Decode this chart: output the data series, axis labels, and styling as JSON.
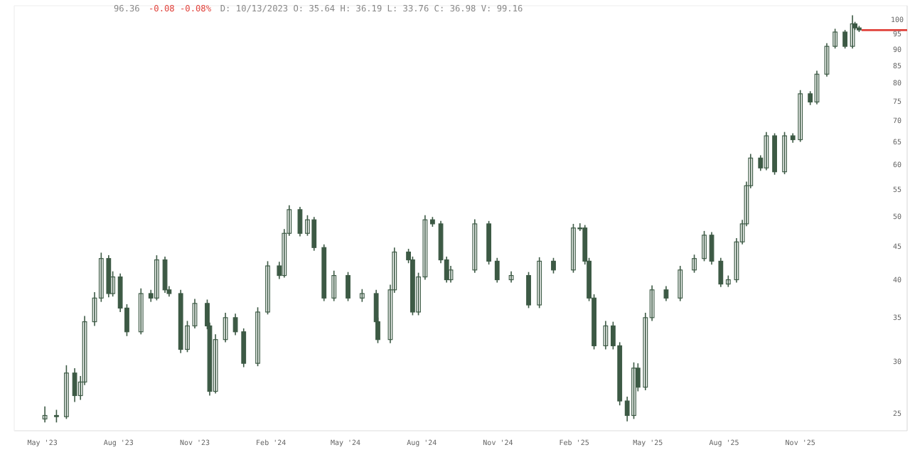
{
  "chart_data": {
    "type": "candlestick",
    "annotations": [
      "96.36",
      "-0.08 -0.08%",
      "D: 10/13/2023 O: 35.64 H: 36.19 L: 33.76 C: 36.98 V: 99.16"
    ],
    "x": [
      "2023-05-04",
      "2023-05-18",
      "2023-05-30",
      "2023-06-09",
      "2023-06-16",
      "2023-06-21",
      "2023-07-03",
      "2023-07-11",
      "2023-07-20",
      "2023-07-25",
      "2023-08-03",
      "2023-08-11",
      "2023-08-28",
      "2023-09-09",
      "2023-09-16",
      "2023-09-26",
      "2023-10-01",
      "2023-10-15",
      "2023-10-23",
      "2023-11-01",
      "2023-11-16",
      "2023-11-19",
      "2023-11-26",
      "2023-12-08",
      "2023-12-20",
      "2023-12-30",
      "2024-01-16",
      "2024-01-28",
      "2024-02-11",
      "2024-02-17",
      "2024-02-23",
      "2024-03-07",
      "2024-03-16",
      "2024-03-24",
      "2024-04-05",
      "2024-04-17",
      "2024-05-04",
      "2024-05-21",
      "2024-06-07",
      "2024-06-09",
      "2024-06-24",
      "2024-06-29",
      "2024-07-16",
      "2024-07-21",
      "2024-07-28",
      "2024-08-05",
      "2024-08-14",
      "2024-08-24",
      "2024-08-31",
      "2024-09-05",
      "2024-10-04",
      "2024-10-21",
      "2024-10-31",
      "2024-11-17",
      "2024-12-08",
      "2024-12-21",
      "2025-01-07",
      "2025-01-31",
      "2025-02-08",
      "2025-02-14",
      "2025-02-19",
      "2025-02-25",
      "2025-03-11",
      "2025-03-20",
      "2025-03-28",
      "2025-04-06",
      "2025-04-14",
      "2025-04-19",
      "2025-04-28",
      "2025-05-06",
      "2025-05-23",
      "2025-06-09",
      "2025-06-26",
      "2025-07-08",
      "2025-07-17",
      "2025-07-28",
      "2025-08-06",
      "2025-08-16",
      "2025-08-23",
      "2025-08-28",
      "2025-09-02",
      "2025-09-14",
      "2025-09-21",
      "2025-10-01",
      "2025-10-13",
      "2025-10-23",
      "2025-11-01",
      "2025-11-13",
      "2025-11-21",
      "2025-12-03",
      "2025-12-13",
      "2025-12-25",
      "2026-01-03",
      "2026-01-06",
      "2026-01-11"
    ],
    "ohlc": [
      [
        24.5,
        25.6,
        24.2,
        24.8
      ],
      [
        24.8,
        25.3,
        24.2,
        24.7
      ],
      [
        24.7,
        29.6,
        24.5,
        28.8
      ],
      [
        28.8,
        29.3,
        26.0,
        26.6
      ],
      [
        26.6,
        28.5,
        26.2,
        27.9
      ],
      [
        27.9,
        35.2,
        27.6,
        34.5
      ],
      [
        34.5,
        38.3,
        34.0,
        37.5
      ],
      [
        37.5,
        44.0,
        37.0,
        43.1
      ],
      [
        43.1,
        43.6,
        37.6,
        38.1
      ],
      [
        38.1,
        41.2,
        37.7,
        40.4
      ],
      [
        40.4,
        40.9,
        35.7,
        36.2
      ],
      [
        36.2,
        36.7,
        32.8,
        33.3
      ],
      [
        33.3,
        38.8,
        33.0,
        38.1
      ],
      [
        38.1,
        38.6,
        37.0,
        37.5
      ],
      [
        37.5,
        43.6,
        37.2,
        42.9
      ],
      [
        42.9,
        43.4,
        38.2,
        38.6
      ],
      [
        38.6,
        39.1,
        37.7,
        38.1
      ],
      [
        38.1,
        38.6,
        30.9,
        31.3
      ],
      [
        31.3,
        34.6,
        31.0,
        34.0
      ],
      [
        34.0,
        37.4,
        33.7,
        36.8
      ],
      [
        36.8,
        37.3,
        33.6,
        34.0
      ],
      [
        34.0,
        34.4,
        26.6,
        27.0
      ],
      [
        27.0,
        33.0,
        26.8,
        32.4
      ],
      [
        32.4,
        35.6,
        32.1,
        35.0
      ],
      [
        35.0,
        35.5,
        32.9,
        33.3
      ],
      [
        33.3,
        33.7,
        29.4,
        29.8
      ],
      [
        29.8,
        36.3,
        29.5,
        35.7
      ],
      [
        35.7,
        42.7,
        35.4,
        42.0
      ],
      [
        42.0,
        42.6,
        40.1,
        40.6
      ],
      [
        40.6,
        47.8,
        40.3,
        47.1
      ],
      [
        47.1,
        52.0,
        46.7,
        51.2
      ],
      [
        51.2,
        51.7,
        46.6,
        47.1
      ],
      [
        47.1,
        50.2,
        46.7,
        49.4
      ],
      [
        49.4,
        49.9,
        44.3,
        44.8
      ],
      [
        44.8,
        45.3,
        37.1,
        37.5
      ],
      [
        37.5,
        41.3,
        37.1,
        40.6
      ],
      [
        40.6,
        41.1,
        37.1,
        37.5
      ],
      [
        37.5,
        38.7,
        37.0,
        38.1
      ],
      [
        38.1,
        38.6,
        34.1,
        34.5
      ],
      [
        34.5,
        35.0,
        32.0,
        32.4
      ],
      [
        32.4,
        39.3,
        32.0,
        38.6
      ],
      [
        38.6,
        44.8,
        38.2,
        44.1
      ],
      [
        44.1,
        44.6,
        42.4,
        42.9
      ],
      [
        42.9,
        43.4,
        35.3,
        35.7
      ],
      [
        35.7,
        41.0,
        35.3,
        40.4
      ],
      [
        40.4,
        50.2,
        40.0,
        49.4
      ],
      [
        49.4,
        49.9,
        48.2,
        48.7
      ],
      [
        48.7,
        49.2,
        42.4,
        42.9
      ],
      [
        42.9,
        43.4,
        39.6,
        40.0
      ],
      [
        40.0,
        42.0,
        39.6,
        41.4
      ],
      [
        41.4,
        49.5,
        41.0,
        48.7
      ],
      [
        48.7,
        49.2,
        42.2,
        42.7
      ],
      [
        42.7,
        43.2,
        39.6,
        40.0
      ],
      [
        40.0,
        41.2,
        39.6,
        40.6
      ],
      [
        40.6,
        41.1,
        36.2,
        36.6
      ],
      [
        36.6,
        43.3,
        36.2,
        42.7
      ],
      [
        42.7,
        43.2,
        40.9,
        41.4
      ],
      [
        41.4,
        48.7,
        41.0,
        48.0
      ],
      [
        48.0,
        48.8,
        47.5,
        48.0
      ],
      [
        48.0,
        48.5,
        42.2,
        42.7
      ],
      [
        42.7,
        43.2,
        37.1,
        37.5
      ],
      [
        37.5,
        38.0,
        31.3,
        31.7
      ],
      [
        31.7,
        34.6,
        31.3,
        34.0
      ],
      [
        34.0,
        34.5,
        31.3,
        31.7
      ],
      [
        31.7,
        32.1,
        25.7,
        26.1
      ],
      [
        26.1,
        26.5,
        24.3,
        24.8
      ],
      [
        24.8,
        29.9,
        24.5,
        29.3
      ],
      [
        29.3,
        29.8,
        27.0,
        27.4
      ],
      [
        27.4,
        35.6,
        27.1,
        35.0
      ],
      [
        35.0,
        39.2,
        34.6,
        38.6
      ],
      [
        38.6,
        39.1,
        37.1,
        37.5
      ],
      [
        37.5,
        42.0,
        37.1,
        41.4
      ],
      [
        41.4,
        43.7,
        41.0,
        43.1
      ],
      [
        43.1,
        47.5,
        42.7,
        46.8
      ],
      [
        46.8,
        47.3,
        42.2,
        42.7
      ],
      [
        42.7,
        43.2,
        39.0,
        39.4
      ],
      [
        39.4,
        40.6,
        39.0,
        40.0
      ],
      [
        40.0,
        46.3,
        39.6,
        45.7
      ],
      [
        45.7,
        49.4,
        45.3,
        48.7
      ],
      [
        48.7,
        56.5,
        48.3,
        55.7
      ],
      [
        55.7,
        62.3,
        55.2,
        61.4
      ],
      [
        61.4,
        62.0,
        58.7,
        59.3
      ],
      [
        59.3,
        67.3,
        58.8,
        66.4
      ],
      [
        66.4,
        67.0,
        57.9,
        58.5
      ],
      [
        58.5,
        67.3,
        58.0,
        66.4
      ],
      [
        66.4,
        67.0,
        64.8,
        65.5
      ],
      [
        65.5,
        78.0,
        65.0,
        77.0
      ],
      [
        77.0,
        77.7,
        74.0,
        74.8
      ],
      [
        74.8,
        83.5,
        74.2,
        82.5
      ],
      [
        82.5,
        92.0,
        81.8,
        91.0
      ],
      [
        91.0,
        96.8,
        90.3,
        95.7
      ],
      [
        95.7,
        96.4,
        90.3,
        91.0
      ],
      [
        91.0,
        101.5,
        90.3,
        98.5
      ],
      [
        98.5,
        99.2,
        96.4,
        97.1
      ],
      [
        97.1,
        97.8,
        95.7,
        96.4
      ]
    ],
    "color": "#3d5a45",
    "log": true,
    "ylim": [
      23.5,
      105
    ],
    "yticks": [
      25,
      30,
      35,
      40,
      45,
      50,
      55,
      60,
      65,
      70,
      75,
      80,
      85,
      90,
      95,
      100
    ],
    "xlim": [
      "2023-03-28",
      "2026-03-10"
    ],
    "xticks": [
      {
        "value": "2023-05-01",
        "label": "May '23"
      },
      {
        "value": "2023-08-01",
        "label": "Aug '23"
      },
      {
        "value": "2023-11-01",
        "label": "Nov '23"
      },
      {
        "value": "2024-02-01",
        "label": "Feb '24"
      },
      {
        "value": "2024-05-01",
        "label": "May '24"
      },
      {
        "value": "2024-08-01",
        "label": "Aug '24"
      },
      {
        "value": "2024-11-01",
        "label": "Nov '24"
      },
      {
        "value": "2025-02-01",
        "label": "Feb '25"
      },
      {
        "value": "2025-05-01",
        "label": "May '25"
      },
      {
        "value": "2025-08-01",
        "label": "Aug '25"
      },
      {
        "value": "2025-11-01",
        "label": "Nov '25"
      }
    ],
    "series": [
      {
        "type": "line",
        "x": [
          "2026-01-14",
          "2026-03-10"
        ],
        "values": [
          96.36,
          96.36
        ],
        "color": "#e0413a"
      }
    ],
    "grid": false
  }
}
